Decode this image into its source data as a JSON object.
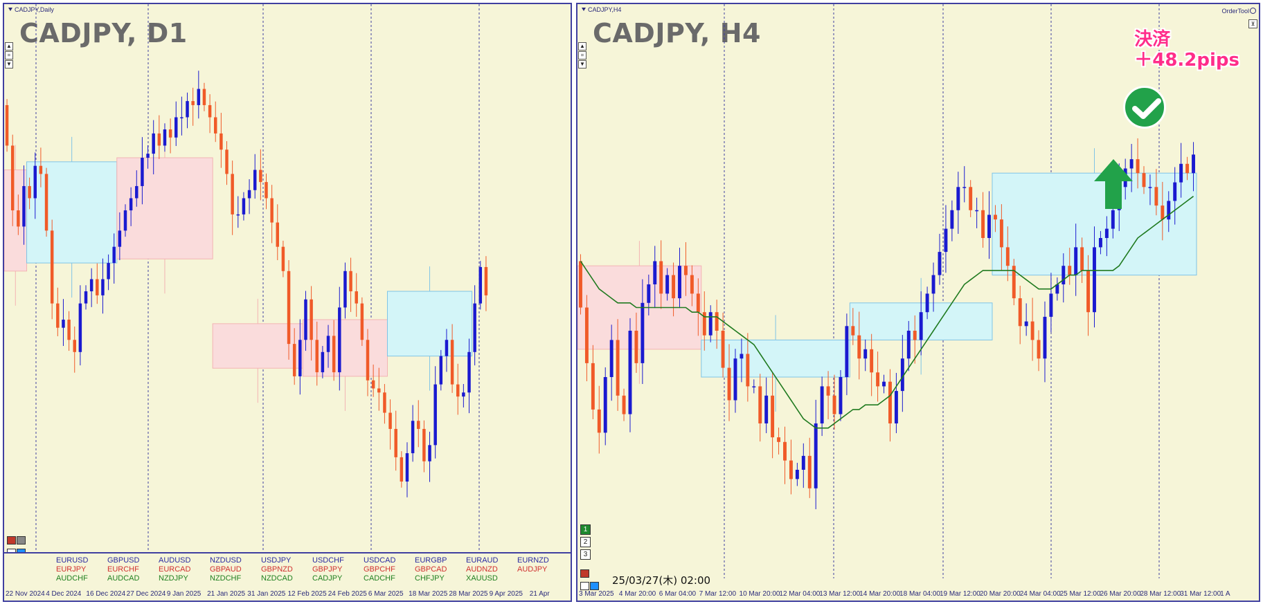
{
  "colors": {
    "background": "#f6f5d8",
    "bull": "#1a1ad0",
    "bear": "#f05a28",
    "ma": "#1f7a1f",
    "box_blue": "#d3f5f8",
    "box_pink": "#fadcdc",
    "grid": "#3f3fa0"
  },
  "left": {
    "window_label": "CADJPY,Daily",
    "big_title": "CADJPY, D1",
    "x_labels": [
      "22 Nov 2024",
      "4 Dec 2024",
      "16 Dec 2024",
      "27 Dec 2024",
      "9 Jan 2025",
      "21 Jan 2025",
      "31 Jan 2025",
      "12 Feb 2025",
      "24 Feb 2025",
      "6 Mar 2025",
      "18 Mar 2025",
      "28 Mar 2025",
      "9 Apr 2025",
      "21 Apr"
    ],
    "tickers": [
      [
        "EURUSD",
        "EURJPY",
        "AUDCHF"
      ],
      [
        "GBPUSD",
        "EURCHF",
        "AUDCAD"
      ],
      [
        "AUDUSD",
        "EURCAD",
        "NZDJPY"
      ],
      [
        "NZDUSD",
        "GBPAUD",
        "NZDCHF"
      ],
      [
        "USDJPY",
        "GBPNZD",
        "NZDCAD"
      ],
      [
        "USDCHF",
        "GBPJPY",
        "CADJPY"
      ],
      [
        "USDCAD",
        "GBPCHF",
        "CADCHF"
      ],
      [
        "EURGBP",
        "GBPCAD",
        "CHFJPY"
      ],
      [
        "EURAUD",
        "AUDNZD",
        "XAUUSD"
      ],
      [
        "EURNZD",
        "AUDJPY",
        ""
      ]
    ]
  },
  "right": {
    "window_label": "CADJPY,H4",
    "big_title": "CADJPY, H4",
    "order_tool": "OrderTool",
    "result_line1": "決済",
    "result_line2": "＋48.2pips",
    "datetime": "25/03/27(木) 02:00",
    "pages": [
      "1",
      "2",
      "3"
    ],
    "x_labels": [
      "3 Mar 2025",
      "4 Mar 20:00",
      "6 Mar 04:00",
      "7 Mar 12:00",
      "10 Mar 20:00",
      "12 Mar 04:00",
      "13 Mar 12:00",
      "14 Mar 20:00",
      "18 Mar 04:00",
      "19 Mar 12:00",
      "20 Mar 20:00",
      "24 Mar 04:00",
      "25 Mar 12:00",
      "26 Mar 20:00",
      "28 Mar 12:00",
      "31 Mar 12:00",
      "1 A"
    ]
  },
  "chart_data": [
    {
      "type": "candlestick",
      "title": "CADJPY, D1",
      "ohlc_shape": "approximate (unlabelled price axis)",
      "opens": [
        0.93,
        0.83,
        0.67,
        0.63,
        0.73,
        0.7,
        0.78,
        0.76,
        0.62,
        0.44,
        0.38,
        0.4,
        0.35,
        0.32,
        0.44,
        0.47,
        0.5,
        0.46,
        0.5,
        0.54,
        0.58,
        0.62,
        0.67,
        0.7,
        0.73,
        0.8,
        0.81,
        0.86,
        0.83,
        0.87,
        0.85,
        0.9,
        0.9,
        0.94,
        0.93,
        0.97,
        0.93,
        0.9,
        0.86,
        0.82,
        0.76,
        0.66,
        0.66,
        0.7,
        0.72,
        0.77,
        0.74,
        0.7,
        0.64,
        0.58,
        0.52,
        0.34,
        0.26,
        0.35,
        0.45,
        0.35,
        0.27,
        0.32,
        0.36,
        0.27,
        0.43,
        0.52,
        0.47,
        0.44,
        0.35,
        0.25,
        0.23,
        0.22,
        0.17,
        0.13,
        0.06,
        0.0,
        0.07,
        0.15,
        0.13,
        0.05,
        0.09,
        0.24,
        0.31,
        0.35,
        0.24,
        0.21,
        0.22,
        0.32,
        0.44,
        0.53
      ],
      "closes": [
        0.83,
        0.67,
        0.63,
        0.73,
        0.7,
        0.78,
        0.76,
        0.62,
        0.44,
        0.38,
        0.4,
        0.35,
        0.32,
        0.44,
        0.47,
        0.5,
        0.46,
        0.5,
        0.54,
        0.58,
        0.62,
        0.67,
        0.7,
        0.73,
        0.8,
        0.81,
        0.86,
        0.83,
        0.87,
        0.85,
        0.9,
        0.9,
        0.94,
        0.93,
        0.97,
        0.93,
        0.9,
        0.86,
        0.82,
        0.76,
        0.66,
        0.66,
        0.7,
        0.72,
        0.77,
        0.74,
        0.7,
        0.64,
        0.58,
        0.52,
        0.34,
        0.26,
        0.35,
        0.45,
        0.35,
        0.27,
        0.32,
        0.36,
        0.27,
        0.43,
        0.52,
        0.47,
        0.44,
        0.35,
        0.25,
        0.23,
        0.22,
        0.17,
        0.13,
        0.06,
        0.0,
        0.07,
        0.15,
        0.13,
        0.05,
        0.09,
        0.24,
        0.31,
        0.35,
        0.24,
        0.21,
        0.22,
        0.32,
        0.44,
        0.53,
        0.46
      ],
      "boxes": [
        {
          "from": -1,
          "to": 3,
          "low": 0.52,
          "high": 0.77,
          "color": "pink"
        },
        {
          "from": 4,
          "to": 19,
          "low": 0.54,
          "high": 0.79,
          "color": "blue"
        },
        {
          "from": 20,
          "to": 36,
          "low": 0.55,
          "high": 0.8,
          "color": "pink"
        },
        {
          "from": 37,
          "to": 52,
          "low": 0.28,
          "high": 0.39,
          "color": "pink"
        },
        {
          "from": 53,
          "to": 67,
          "low": 0.26,
          "high": 0.4,
          "color": "pink"
        },
        {
          "from": 68,
          "to": 82,
          "low": 0.31,
          "high": 0.47,
          "color": "blue"
        }
      ]
    },
    {
      "type": "candlestick",
      "title": "CADJPY, H4",
      "ohlc_shape": "approximate (unlabelled price axis)",
      "opens": [
        0.55,
        0.45,
        0.33,
        0.23,
        0.18,
        0.3,
        0.38,
        0.26,
        0.22,
        0.4,
        0.33,
        0.46,
        0.5,
        0.55,
        0.48,
        0.52,
        0.47,
        0.54,
        0.52,
        0.48,
        0.44,
        0.39,
        0.44,
        0.4,
        0.32,
        0.25,
        0.34,
        0.35,
        0.28,
        0.28,
        0.2,
        0.26,
        0.17,
        0.16,
        0.12,
        0.08,
        0.1,
        0.13,
        0.06,
        0.2,
        0.28,
        0.26,
        0.22,
        0.3,
        0.41,
        0.39,
        0.34,
        0.36,
        0.31,
        0.28,
        0.29,
        0.2,
        0.27,
        0.34,
        0.4,
        0.38,
        0.44,
        0.48,
        0.52,
        0.57,
        0.62,
        0.66,
        0.71,
        0.71,
        0.66,
        0.66,
        0.6,
        0.65,
        0.64,
        0.58,
        0.54,
        0.47,
        0.41,
        0.42,
        0.38,
        0.34,
        0.43,
        0.48,
        0.5,
        0.54,
        0.52,
        0.58,
        0.53,
        0.44,
        0.58,
        0.6,
        0.62,
        0.66,
        0.71,
        0.75,
        0.77,
        0.74,
        0.71,
        0.71,
        0.67,
        0.64,
        0.68,
        0.72,
        0.76,
        0.74
      ],
      "closes": [
        0.45,
        0.33,
        0.23,
        0.18,
        0.3,
        0.38,
        0.26,
        0.22,
        0.4,
        0.33,
        0.46,
        0.5,
        0.55,
        0.48,
        0.52,
        0.47,
        0.54,
        0.52,
        0.48,
        0.44,
        0.39,
        0.44,
        0.4,
        0.32,
        0.25,
        0.34,
        0.35,
        0.28,
        0.28,
        0.2,
        0.26,
        0.17,
        0.16,
        0.12,
        0.08,
        0.1,
        0.13,
        0.06,
        0.2,
        0.28,
        0.26,
        0.22,
        0.3,
        0.41,
        0.39,
        0.34,
        0.36,
        0.31,
        0.28,
        0.29,
        0.2,
        0.27,
        0.34,
        0.4,
        0.38,
        0.44,
        0.48,
        0.52,
        0.57,
        0.62,
        0.66,
        0.71,
        0.71,
        0.66,
        0.66,
        0.6,
        0.65,
        0.64,
        0.58,
        0.54,
        0.47,
        0.41,
        0.42,
        0.38,
        0.34,
        0.43,
        0.48,
        0.5,
        0.54,
        0.52,
        0.58,
        0.53,
        0.44,
        0.58,
        0.6,
        0.62,
        0.66,
        0.71,
        0.75,
        0.77,
        0.74,
        0.71,
        0.71,
        0.67,
        0.64,
        0.68,
        0.72,
        0.76,
        0.74,
        0.78
      ],
      "ma": [
        0.55,
        0.53,
        0.51,
        0.49,
        0.48,
        0.47,
        0.46,
        0.46,
        0.46,
        0.45,
        0.45,
        0.45,
        0.45,
        0.45,
        0.45,
        0.45,
        0.45,
        0.45,
        0.44,
        0.44,
        0.43,
        0.43,
        0.43,
        0.42,
        0.41,
        0.4,
        0.39,
        0.38,
        0.37,
        0.35,
        0.33,
        0.31,
        0.29,
        0.27,
        0.25,
        0.23,
        0.21,
        0.2,
        0.19,
        0.19,
        0.19,
        0.2,
        0.21,
        0.22,
        0.23,
        0.23,
        0.24,
        0.24,
        0.24,
        0.25,
        0.26,
        0.28,
        0.3,
        0.32,
        0.34,
        0.36,
        0.38,
        0.4,
        0.42,
        0.44,
        0.46,
        0.48,
        0.5,
        0.51,
        0.52,
        0.53,
        0.53,
        0.53,
        0.53,
        0.53,
        0.53,
        0.52,
        0.51,
        0.5,
        0.49,
        0.49,
        0.49,
        0.5,
        0.51,
        0.52,
        0.52,
        0.53,
        0.53,
        0.53,
        0.53,
        0.53,
        0.53,
        0.54,
        0.56,
        0.58,
        0.6,
        0.61,
        0.62,
        0.63,
        0.64,
        0.65,
        0.66,
        0.67,
        0.68,
        0.69
      ],
      "boxes": [
        {
          "from": -1,
          "to": 19,
          "low": 0.36,
          "high": 0.54,
          "color": "pink"
        },
        {
          "from": 20,
          "to": 43,
          "low": 0.3,
          "high": 0.38,
          "color": "blue"
        },
        {
          "from": 44,
          "to": 66,
          "low": 0.38,
          "high": 0.46,
          "color": "blue"
        },
        {
          "from": 67,
          "to": 99,
          "low": 0.52,
          "high": 0.74,
          "color": "blue"
        }
      ]
    }
  ]
}
